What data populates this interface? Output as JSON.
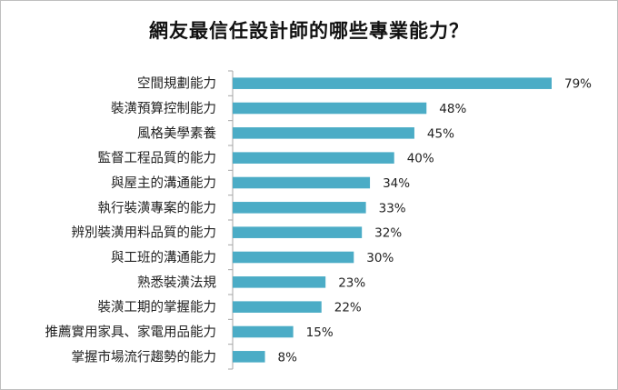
{
  "chart_data": {
    "type": "bar",
    "orientation": "horizontal",
    "title": "網友最信任設計師的哪些專業能力？",
    "categories": [
      "空間規劃能力",
      "裝潢預算控制能力",
      "風格美學素養",
      "監督工程品質的能力",
      "與屋主的溝通能力",
      "執行裝潢專案的能力",
      "辨別裝潢用料品質的能力",
      "與工班的溝通能力",
      "熟悉裝潢法規",
      "裝潢工期的掌握能力",
      "推薦實用家具、家電用品能力",
      "掌握市場流行趨勢的能力"
    ],
    "values": [
      79,
      48,
      45,
      40,
      34,
      33,
      32,
      30,
      23,
      22,
      15,
      8
    ],
    "value_labels": [
      "79%",
      "48%",
      "45%",
      "40%",
      "34%",
      "33%",
      "32%",
      "30%",
      "23%",
      "22%",
      "15%",
      "8%"
    ],
    "xlim": [
      0,
      80
    ],
    "unit": "%",
    "grid": false,
    "legend": "none",
    "bar_color": "#4bacc6",
    "axis_color": "#a6a6a6"
  }
}
